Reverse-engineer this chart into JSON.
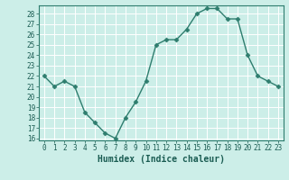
{
  "x": [
    0,
    1,
    2,
    3,
    4,
    5,
    6,
    7,
    8,
    9,
    10,
    11,
    12,
    13,
    14,
    15,
    16,
    17,
    18,
    19,
    20,
    21,
    22,
    23
  ],
  "y": [
    22,
    21,
    21.5,
    21,
    18.5,
    17.5,
    16.5,
    16,
    18,
    19.5,
    21.5,
    25,
    25.5,
    25.5,
    26.5,
    28,
    28.5,
    28.5,
    27.5,
    27.5,
    24,
    22,
    21.5,
    21
  ],
  "line_color": "#2e7d6e",
  "marker": "D",
  "marker_size": 2.5,
  "bg_color": "#cceee8",
  "grid_color": "#ffffff",
  "xlabel": "Humidex (Indice chaleur)",
  "ylabel": "",
  "title": "",
  "xlim": [
    -0.5,
    23.5
  ],
  "ylim": [
    16,
    28.5
  ],
  "yticks": [
    16,
    17,
    18,
    19,
    20,
    21,
    22,
    23,
    24,
    25,
    26,
    27,
    28
  ],
  "xticks": [
    0,
    1,
    2,
    3,
    4,
    5,
    6,
    7,
    8,
    9,
    10,
    11,
    12,
    13,
    14,
    15,
    16,
    17,
    18,
    19,
    20,
    21,
    22,
    23
  ],
  "tick_fontsize": 5.5,
  "xlabel_fontsize": 7,
  "line_width": 1.0
}
